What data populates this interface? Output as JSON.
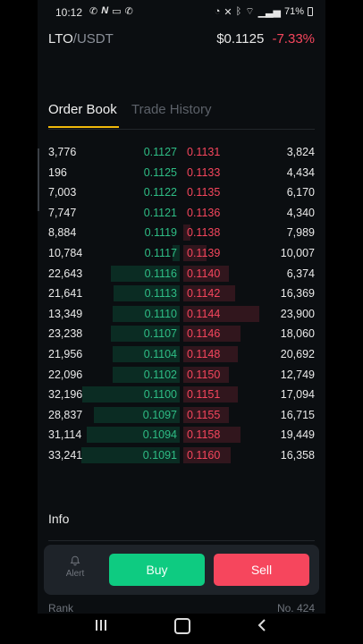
{
  "status_bar": {
    "time": "10:12",
    "battery": "71%"
  },
  "header": {
    "base": "LTO",
    "quote": "/USDT",
    "last_price": "$0.1125",
    "change": "-7.33%"
  },
  "tabs": [
    {
      "label": "Order Book",
      "active": true
    },
    {
      "label": "Trade History",
      "active": false
    }
  ],
  "order_book": [
    {
      "bid_qty": "3,776",
      "bid_price": "0.1127",
      "ask_price": "0.1131",
      "ask_qty": "3,824",
      "bid_depth": 0.0,
      "ask_depth": 0.0
    },
    {
      "bid_qty": "196",
      "bid_price": "0.1125",
      "ask_price": "0.1133",
      "ask_qty": "4,434",
      "bid_depth": 0.0,
      "ask_depth": 0.0
    },
    {
      "bid_qty": "7,003",
      "bid_price": "0.1122",
      "ask_price": "0.1135",
      "ask_qty": "6,170",
      "bid_depth": 0.0,
      "ask_depth": 0.0
    },
    {
      "bid_qty": "7,747",
      "bid_price": "0.1121",
      "ask_price": "0.1136",
      "ask_qty": "4,340",
      "bid_depth": 0.0,
      "ask_depth": 0.0
    },
    {
      "bid_qty": "8,884",
      "bid_price": "0.1119",
      "ask_price": "0.1138",
      "ask_qty": "7,989",
      "bid_depth": 0.0,
      "ask_depth": 0.05
    },
    {
      "bid_qty": "10,784",
      "bid_price": "0.1117",
      "ask_price": "0.1139",
      "ask_qty": "10,007",
      "bid_depth": 0.05,
      "ask_depth": 0.16
    },
    {
      "bid_qty": "22,643",
      "bid_price": "0.1116",
      "ask_price": "0.1140",
      "ask_qty": "6,374",
      "bid_depth": 0.48,
      "ask_depth": 0.32
    },
    {
      "bid_qty": "21,641",
      "bid_price": "0.1113",
      "ask_price": "0.1142",
      "ask_qty": "16,369",
      "bid_depth": 0.46,
      "ask_depth": 0.36
    },
    {
      "bid_qty": "13,349",
      "bid_price": "0.1110",
      "ask_price": "0.1144",
      "ask_qty": "23,900",
      "bid_depth": 0.47,
      "ask_depth": 0.53
    },
    {
      "bid_qty": "23,238",
      "bid_price": "0.1107",
      "ask_price": "0.1146",
      "ask_qty": "18,060",
      "bid_depth": 0.48,
      "ask_depth": 0.4
    },
    {
      "bid_qty": "21,956",
      "bid_price": "0.1104",
      "ask_price": "0.1148",
      "ask_qty": "20,692",
      "bid_depth": 0.47,
      "ask_depth": 0.38
    },
    {
      "bid_qty": "22,096",
      "bid_price": "0.1102",
      "ask_price": "0.1150",
      "ask_qty": "12,749",
      "bid_depth": 0.47,
      "ask_depth": 0.32
    },
    {
      "bid_qty": "32,196",
      "bid_price": "0.1100",
      "ask_price": "0.1151",
      "ask_qty": "17,094",
      "bid_depth": 0.68,
      "ask_depth": 0.38
    },
    {
      "bid_qty": "28,837",
      "bid_price": "0.1097",
      "ask_price": "0.1155",
      "ask_qty": "16,715",
      "bid_depth": 0.6,
      "ask_depth": 0.32
    },
    {
      "bid_qty": "31,114",
      "bid_price": "0.1094",
      "ask_price": "0.1158",
      "ask_qty": "19,449",
      "bid_depth": 0.65,
      "ask_depth": 0.4
    },
    {
      "bid_qty": "33,241",
      "bid_price": "0.1091",
      "ask_price": "0.1160",
      "ask_qty": "16,358",
      "bid_depth": 0.69,
      "ask_depth": 0.33
    }
  ],
  "info": {
    "title": "Info",
    "rank_label": "Rank",
    "rank_value": "No. 424"
  },
  "actions": {
    "alert_label": "Alert",
    "buy_label": "Buy",
    "sell_label": "Sell"
  },
  "colors": {
    "bid": "#2ebd85",
    "ask": "#f6465d",
    "accent": "#f0b90b",
    "buy_button": "#0ecb81",
    "sell_button": "#f6465d"
  }
}
